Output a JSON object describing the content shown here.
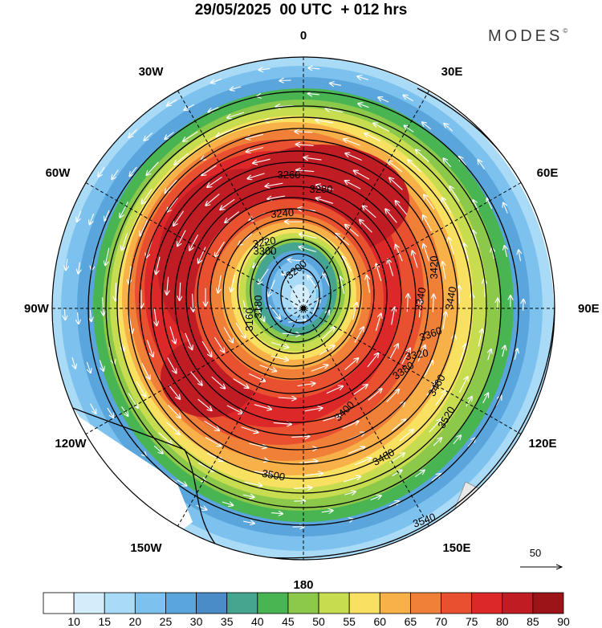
{
  "header": {
    "title": "29/05/2025  00 UTC  + 012 hrs",
    "brand": "MODES",
    "brand_mark": "©"
  },
  "map": {
    "projection": "polar stereographic, south pole centered",
    "longitude_labels": [
      {
        "name": "lon-0",
        "text": "0"
      },
      {
        "name": "lon-30e",
        "text": "30E"
      },
      {
        "name": "lon-60e",
        "text": "60E"
      },
      {
        "name": "lon-90e",
        "text": "90E"
      },
      {
        "name": "lon-120e",
        "text": "120E"
      },
      {
        "name": "lon-150e",
        "text": "150E"
      },
      {
        "name": "lon-180",
        "text": "180"
      },
      {
        "name": "lon-150w",
        "text": "150W"
      },
      {
        "name": "lon-120w",
        "text": "120W"
      },
      {
        "name": "lon-90w",
        "text": "90W"
      },
      {
        "name": "lon-60w",
        "text": "60W"
      },
      {
        "name": "lon-30w",
        "text": "30W"
      }
    ],
    "contour_labels": [
      "3200",
      "3220",
      "3240",
      "3260",
      "3280",
      "3300",
      "3320",
      "3340",
      "3360",
      "3380",
      "3400",
      "3420",
      "3440",
      "3460",
      "3480",
      "3500",
      "3520",
      "3540",
      "3160",
      "3180"
    ],
    "vector_reference": "50"
  },
  "colorbar": {
    "ticks": [
      "10",
      "15",
      "20",
      "25",
      "30",
      "35",
      "40",
      "45",
      "50",
      "55",
      "60",
      "65",
      "70",
      "75",
      "80",
      "85",
      "90"
    ],
    "colors": [
      "#ffffff",
      "#d4edfb",
      "#aadbf6",
      "#7dc2ee",
      "#5aa5dc",
      "#4a8cc8",
      "#45a58e",
      "#48b452",
      "#8cc84a",
      "#c8dc50",
      "#f8e060",
      "#f8b048",
      "#f08038",
      "#e85030",
      "#dc2828",
      "#c01c24",
      "#9c1418"
    ]
  }
}
